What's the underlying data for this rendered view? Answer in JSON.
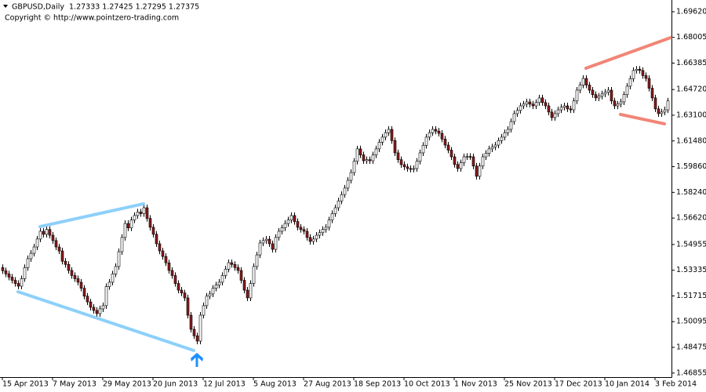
{
  "chart_data": {
    "type": "candlestick",
    "title": "GBPUSD,Daily  1.27333 1.27425 1.27295 1.27375",
    "subtitle": "Copyright © http://www.pointzero-trading.com",
    "up_color": "#ffffff",
    "down_color": "#8b1a1a",
    "wick_color": "#000000",
    "categories": [
      "15 Apr 2013",
      null,
      null,
      null,
      null,
      null,
      null,
      null,
      null,
      null,
      null,
      null,
      null,
      null,
      null,
      null,
      "7 May 2013",
      null,
      null,
      null,
      null,
      null,
      null,
      null,
      null,
      null,
      null,
      null,
      null,
      null,
      null,
      null,
      "29 May 2013",
      null,
      null,
      null,
      null,
      null,
      null,
      null,
      null,
      null,
      null,
      null,
      null,
      null,
      null,
      null,
      "20 Jun 2013",
      null,
      null,
      null,
      null,
      null,
      null,
      null,
      null,
      null,
      null,
      null,
      null,
      null,
      null,
      null,
      "12 Jul 2013",
      null,
      null,
      null,
      null,
      null,
      null,
      null,
      null,
      null,
      null,
      null,
      null,
      null,
      null,
      null,
      "5 Aug 2013",
      null,
      null,
      null,
      null,
      null,
      null,
      null,
      null,
      null,
      null,
      null,
      null,
      null,
      null,
      null,
      "27 Aug 2013",
      null,
      null,
      null,
      null,
      null,
      null,
      null,
      null,
      null,
      null,
      null,
      null,
      null,
      null,
      null,
      "18 Sep 2013",
      null,
      null,
      null,
      null,
      null,
      null,
      null,
      null,
      null,
      null,
      null,
      null,
      null,
      null,
      null,
      "10 Oct 2013",
      null,
      null,
      null,
      null,
      null,
      null,
      null,
      null,
      null,
      null,
      null,
      null,
      null,
      null,
      null,
      "1 Nov 2013",
      null,
      null,
      null,
      null,
      null,
      null,
      null,
      null,
      null,
      null,
      null,
      null,
      null,
      null,
      null,
      "25 Nov 2013",
      null,
      null,
      null,
      null,
      null,
      null,
      null,
      null,
      null,
      null,
      null,
      null,
      null,
      null,
      null,
      "17 Dec 2013",
      null,
      null,
      null,
      null,
      null,
      null,
      null,
      null,
      null,
      null,
      null,
      null,
      null,
      null,
      null,
      "10 Jan 2014",
      null,
      null,
      null,
      null,
      null,
      null,
      null,
      null,
      null,
      null,
      null,
      null,
      null,
      null,
      null,
      "3 Feb 2014",
      null,
      null,
      null,
      null
    ],
    "open": [
      1.535,
      1.533,
      1.531,
      1.529,
      1.527,
      1.525,
      1.5233,
      1.528,
      1.535,
      1.5406,
      1.544,
      1.548,
      1.553,
      1.5579,
      1.556,
      1.559,
      1.5554,
      1.552,
      1.548,
      1.5455,
      1.539,
      1.537,
      1.5332,
      1.53,
      1.528,
      1.5258,
      1.522,
      1.517,
      1.5134,
      1.51,
      1.508,
      1.506,
      1.509,
      1.511,
      1.523,
      1.5258,
      1.531,
      1.5357,
      1.545,
      1.554,
      1.5628,
      1.56,
      1.565,
      1.5678,
      1.57,
      1.569,
      1.5727,
      1.566,
      1.5604,
      1.556,
      1.55,
      1.5455,
      1.542,
      1.538,
      1.5332,
      1.53,
      1.525,
      1.5208,
      1.519,
      1.5159,
      1.505,
      1.4961,
      1.492,
      1.4887,
      1.505,
      1.511,
      1.517,
      1.5184,
      1.522,
      1.524,
      1.5258,
      1.53,
      1.534,
      1.5381,
      1.537,
      1.535,
      1.5332,
      1.527,
      1.5208,
      1.5159,
      1.525,
      1.5357,
      1.543,
      1.5505,
      1.552,
      1.5529,
      1.55,
      1.5465,
      1.554,
      1.5579,
      1.56,
      1.5628,
      1.565,
      1.5678,
      1.564,
      1.5604,
      1.559,
      1.5579,
      1.554,
      1.5515,
      1.553,
      1.5554,
      1.557,
      1.559,
      1.5604,
      1.565,
      1.569,
      1.5727,
      1.577,
      1.581,
      1.5851,
      1.59,
      1.5949,
      1.602,
      1.6098,
      1.606,
      1.6023,
      1.603,
      1.6023,
      1.606,
      1.6098,
      1.614,
      1.6172,
      1.62,
      1.6221,
      1.615,
      1.6073,
      1.603,
      1.5999,
      1.5985,
      1.5974,
      1.597,
      1.5974,
      1.602,
      1.6073,
      1.612,
      1.6172,
      1.62,
      1.6221,
      1.621,
      1.6196,
      1.616,
      1.6122,
      1.609,
      1.6048,
      1.6,
      1.5974,
      1.601,
      1.6048,
      1.605,
      1.6048,
      1.599,
      1.5925,
      1.599,
      1.6048,
      1.607,
      1.6098,
      1.611,
      1.6122,
      1.615,
      1.6172,
      1.62,
      1.6221,
      1.627,
      1.632,
      1.634,
      1.6369,
      1.638,
      1.6394,
      1.638,
      1.6369,
      1.639,
      1.6419,
      1.639,
      1.6369,
      1.633,
      1.6295,
      1.632,
      1.6344,
      1.636,
      1.6369,
      1.635,
      1.6344,
      1.64,
      1.6468,
      1.65,
      1.6542,
      1.65,
      1.6468,
      1.644,
      1.6419,
      1.643,
      1.6444,
      1.6455,
      1.6468,
      1.64,
      1.6369,
      1.638,
      1.6394,
      1.644,
      1.6493,
      1.654,
      1.6592,
      1.66,
      1.6592,
      1.656,
      1.6542,
      1.648,
      1.6419,
      1.635,
      1.632,
      1.633,
      1.6344
    ],
    "high": [
      1.537,
      1.535,
      1.533,
      1.531,
      1.529,
      1.527,
      1.53,
      1.537,
      1.5426,
      1.546,
      1.55,
      1.555,
      1.5599,
      1.5599,
      1.561,
      1.561,
      1.5574,
      1.554,
      1.55,
      1.5475,
      1.541,
      1.539,
      1.5352,
      1.532,
      1.53,
      1.5278,
      1.524,
      1.519,
      1.5154,
      1.512,
      1.51,
      1.511,
      1.513,
      1.525,
      1.5278,
      1.533,
      1.5377,
      1.547,
      1.556,
      1.5648,
      1.5648,
      1.567,
      1.5698,
      1.572,
      1.572,
      1.5747,
      1.5747,
      1.568,
      1.5624,
      1.558,
      1.552,
      1.5475,
      1.544,
      1.54,
      1.5352,
      1.532,
      1.527,
      1.5228,
      1.521,
      1.5179,
      1.507,
      1.4981,
      1.494,
      1.507,
      1.513,
      1.519,
      1.5204,
      1.524,
      1.526,
      1.5278,
      1.532,
      1.536,
      1.5401,
      1.5401,
      1.539,
      1.537,
      1.5352,
      1.529,
      1.5228,
      1.527,
      1.5377,
      1.545,
      1.5525,
      1.554,
      1.5549,
      1.5549,
      1.552,
      1.556,
      1.5599,
      1.562,
      1.5648,
      1.567,
      1.5698,
      1.5698,
      1.566,
      1.5624,
      1.561,
      1.5599,
      1.556,
      1.555,
      1.5574,
      1.559,
      1.561,
      1.5624,
      1.567,
      1.571,
      1.5747,
      1.579,
      1.583,
      1.5871,
      1.592,
      1.5969,
      1.604,
      1.6118,
      1.6118,
      1.608,
      1.605,
      1.605,
      1.608,
      1.6118,
      1.616,
      1.6192,
      1.622,
      1.6241,
      1.6241,
      1.617,
      1.6093,
      1.605,
      1.6019,
      1.6005,
      1.5994,
      1.5994,
      1.604,
      1.6093,
      1.614,
      1.6192,
      1.622,
      1.6241,
      1.6241,
      1.623,
      1.6216,
      1.618,
      1.6142,
      1.611,
      1.6068,
      1.602,
      1.603,
      1.6068,
      1.607,
      1.607,
      1.6068,
      1.601,
      1.601,
      1.6068,
      1.609,
      1.6118,
      1.613,
      1.6142,
      1.617,
      1.6192,
      1.622,
      1.6241,
      1.629,
      1.634,
      1.636,
      1.6389,
      1.64,
      1.6414,
      1.6414,
      1.64,
      1.641,
      1.6439,
      1.6439,
      1.641,
      1.6389,
      1.635,
      1.634,
      1.6364,
      1.638,
      1.6389,
      1.6389,
      1.637,
      1.642,
      1.6488,
      1.652,
      1.6562,
      1.6562,
      1.652,
      1.6488,
      1.646,
      1.645,
      1.6464,
      1.6475,
      1.6488,
      1.6488,
      1.642,
      1.64,
      1.6414,
      1.646,
      1.6513,
      1.656,
      1.6612,
      1.662,
      1.662,
      1.6612,
      1.658,
      1.6562,
      1.65,
      1.6439,
      1.637,
      1.635,
      1.6364,
      1.642
    ],
    "low": [
      1.531,
      1.529,
      1.527,
      1.525,
      1.523,
      1.5213,
      1.5213,
      1.526,
      1.533,
      1.5386,
      1.542,
      1.546,
      1.551,
      1.554,
      1.554,
      1.5534,
      1.55,
      1.546,
      1.5435,
      1.537,
      1.535,
      1.5312,
      1.528,
      1.526,
      1.5238,
      1.52,
      1.515,
      1.5114,
      1.508,
      1.506,
      1.504,
      1.504,
      1.507,
      1.509,
      1.521,
      1.5238,
      1.529,
      1.5337,
      1.543,
      1.552,
      1.558,
      1.558,
      1.563,
      1.5658,
      1.567,
      1.567,
      1.564,
      1.5584,
      1.554,
      1.548,
      1.5435,
      1.54,
      1.536,
      1.5312,
      1.528,
      1.523,
      1.5188,
      1.517,
      1.5139,
      1.503,
      1.4941,
      1.49,
      1.4867,
      1.4867,
      1.503,
      1.509,
      1.515,
      1.5164,
      1.52,
      1.522,
      1.5238,
      1.528,
      1.532,
      1.535,
      1.533,
      1.5312,
      1.525,
      1.5188,
      1.5139,
      1.5139,
      1.523,
      1.5337,
      1.541,
      1.5485,
      1.55,
      1.548,
      1.5445,
      1.5445,
      1.552,
      1.5559,
      1.558,
      1.5608,
      1.563,
      1.562,
      1.5584,
      1.557,
      1.5559,
      1.552,
      1.5495,
      1.5495,
      1.551,
      1.5534,
      1.555,
      1.557,
      1.5584,
      1.563,
      1.567,
      1.5707,
      1.575,
      1.579,
      1.5831,
      1.588,
      1.5929,
      1.6,
      1.604,
      1.6003,
      1.6003,
      1.6003,
      1.6003,
      1.604,
      1.6078,
      1.612,
      1.6152,
      1.618,
      1.613,
      1.6053,
      1.601,
      1.5979,
      1.5965,
      1.5954,
      1.595,
      1.595,
      1.5954,
      1.6,
      1.6053,
      1.61,
      1.6152,
      1.618,
      1.619,
      1.6176,
      1.614,
      1.6102,
      1.607,
      1.6028,
      1.598,
      1.5954,
      1.5954,
      1.599,
      1.6028,
      1.6028,
      1.597,
      1.5905,
      1.5905,
      1.597,
      1.6028,
      1.605,
      1.6078,
      1.609,
      1.6102,
      1.613,
      1.6152,
      1.618,
      1.6201,
      1.625,
      1.63,
      1.632,
      1.6349,
      1.636,
      1.636,
      1.6349,
      1.6349,
      1.637,
      1.637,
      1.6349,
      1.631,
      1.6275,
      1.6275,
      1.63,
      1.6324,
      1.634,
      1.633,
      1.6324,
      1.6324,
      1.638,
      1.6448,
      1.648,
      1.648,
      1.6448,
      1.642,
      1.6399,
      1.6399,
      1.641,
      1.6424,
      1.6435,
      1.638,
      1.6349,
      1.6349,
      1.636,
      1.6374,
      1.642,
      1.6473,
      1.652,
      1.6572,
      1.6572,
      1.654,
      1.6522,
      1.646,
      1.6399,
      1.633,
      1.63,
      1.63,
      1.631,
      1.6324
    ],
    "close": [
      1.533,
      1.531,
      1.529,
      1.527,
      1.525,
      1.5233,
      1.528,
      1.535,
      1.5406,
      1.544,
      1.548,
      1.553,
      1.5579,
      1.556,
      1.559,
      1.5554,
      1.552,
      1.548,
      1.5455,
      1.539,
      1.537,
      1.5332,
      1.53,
      1.528,
      1.5258,
      1.522,
      1.517,
      1.5134,
      1.51,
      1.508,
      1.506,
      1.509,
      1.511,
      1.523,
      1.5258,
      1.531,
      1.5357,
      1.545,
      1.554,
      1.5628,
      1.56,
      1.565,
      1.5678,
      1.57,
      1.569,
      1.5727,
      1.566,
      1.5604,
      1.556,
      1.55,
      1.5455,
      1.542,
      1.538,
      1.5332,
      1.53,
      1.525,
      1.5208,
      1.519,
      1.5159,
      1.505,
      1.4961,
      1.492,
      1.4887,
      1.505,
      1.511,
      1.517,
      1.5184,
      1.522,
      1.524,
      1.5258,
      1.53,
      1.534,
      1.5381,
      1.537,
      1.535,
      1.5332,
      1.527,
      1.5208,
      1.5159,
      1.525,
      1.5357,
      1.543,
      1.5505,
      1.552,
      1.5529,
      1.55,
      1.5465,
      1.554,
      1.5579,
      1.56,
      1.5628,
      1.565,
      1.5678,
      1.564,
      1.5604,
      1.559,
      1.5579,
      1.554,
      1.5515,
      1.553,
      1.5554,
      1.557,
      1.559,
      1.5604,
      1.565,
      1.569,
      1.5727,
      1.577,
      1.581,
      1.5851,
      1.59,
      1.5949,
      1.602,
      1.6098,
      1.606,
      1.6023,
      1.603,
      1.6023,
      1.606,
      1.6098,
      1.614,
      1.6172,
      1.62,
      1.6221,
      1.615,
      1.6073,
      1.603,
      1.5999,
      1.5985,
      1.5974,
      1.597,
      1.5974,
      1.602,
      1.6073,
      1.612,
      1.6172,
      1.62,
      1.6221,
      1.621,
      1.6196,
      1.616,
      1.6122,
      1.609,
      1.6048,
      1.6,
      1.5974,
      1.601,
      1.6048,
      1.605,
      1.6048,
      1.599,
      1.5925,
      1.599,
      1.6048,
      1.607,
      1.6098,
      1.611,
      1.6122,
      1.615,
      1.6172,
      1.62,
      1.6221,
      1.627,
      1.632,
      1.634,
      1.6369,
      1.638,
      1.6394,
      1.638,
      1.6369,
      1.639,
      1.6419,
      1.639,
      1.6369,
      1.633,
      1.6295,
      1.632,
      1.6344,
      1.636,
      1.6369,
      1.635,
      1.6344,
      1.64,
      1.6468,
      1.65,
      1.6542,
      1.65,
      1.6468,
      1.644,
      1.6419,
      1.643,
      1.6444,
      1.6455,
      1.6468,
      1.64,
      1.6369,
      1.638,
      1.6394,
      1.644,
      1.6493,
      1.654,
      1.6592,
      1.66,
      1.6592,
      1.656,
      1.6542,
      1.648,
      1.6419,
      1.635,
      1.632,
      1.633,
      1.6344,
      1.64
    ],
    "ylim": [
      1.466,
      1.7036
    ],
    "yticks": [
      {
        "value": 1.6962,
        "label": "1.69620"
      },
      {
        "value": 1.68005,
        "label": "1.68005"
      },
      {
        "value": 1.66385,
        "label": "1.66385"
      },
      {
        "value": 1.6472,
        "label": "1.64720"
      },
      {
        "value": 1.631,
        "label": "1.63100"
      },
      {
        "value": 1.6148,
        "label": "1.61480"
      },
      {
        "value": 1.5986,
        "label": "1.59860"
      },
      {
        "value": 1.5824,
        "label": "1.58240"
      },
      {
        "value": 1.5662,
        "label": "1.56620"
      },
      {
        "value": 1.54955,
        "label": "1.54955"
      },
      {
        "value": 1.53335,
        "label": "1.53335"
      },
      {
        "value": 1.51715,
        "label": "1.51715"
      },
      {
        "value": 1.50095,
        "label": "1.50095"
      },
      {
        "value": 1.48475,
        "label": "1.48475"
      },
      {
        "value": 1.46855,
        "label": "1.46855"
      }
    ],
    "trendlines": [
      {
        "color": "#87cefa",
        "points": [
          [
            12,
            1.5608
          ],
          [
            45,
            1.5752
          ]
        ]
      },
      {
        "color": "#87cefa",
        "points": [
          [
            5,
            1.5198
          ],
          [
            61,
            1.4828
          ]
        ]
      },
      {
        "color": "#f08070",
        "points": [
          [
            186,
            1.6606
          ],
          [
            213,
            1.6799
          ]
        ]
      },
      {
        "color": "#f08070",
        "points": [
          [
            197,
            1.6315
          ],
          [
            211,
            1.6256
          ]
        ]
      }
    ],
    "signal": {
      "index": 62,
      "price": 1.4813,
      "color": "#1e90ff"
    }
  }
}
